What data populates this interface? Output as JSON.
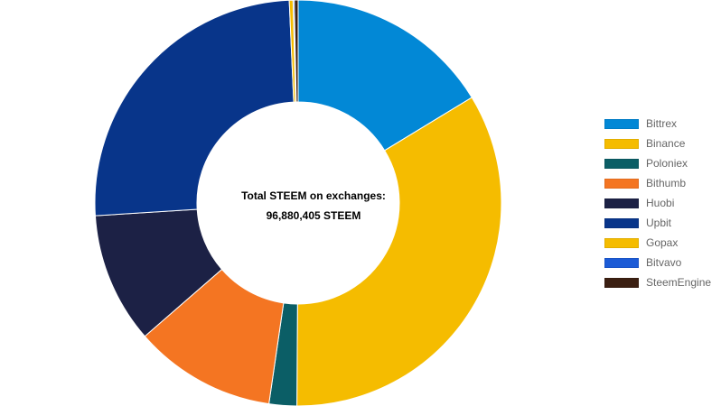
{
  "center": {
    "line1": "Total STEEM on exchanges:",
    "line2": "96,880,405 STEEM"
  },
  "chart_data": {
    "type": "pie",
    "donut": true,
    "legend": "right",
    "categories": [
      "Bittrex",
      "Binance",
      "Poloniex",
      "Bithumb",
      "Huobi",
      "Upbit",
      "Gopax",
      "Bitvavo",
      "SteemEngine"
    ],
    "values": [
      16.3,
      33.8,
      2.2,
      11.3,
      10.4,
      25.3,
      0.3,
      0.1,
      0.3
    ],
    "colors": [
      "#0288d6",
      "#f5bc00",
      "#0b5e66",
      "#f47522",
      "#1c2145",
      "#08358a",
      "#f5bc00",
      "#1c5bd6",
      "#3b1f12"
    ]
  }
}
